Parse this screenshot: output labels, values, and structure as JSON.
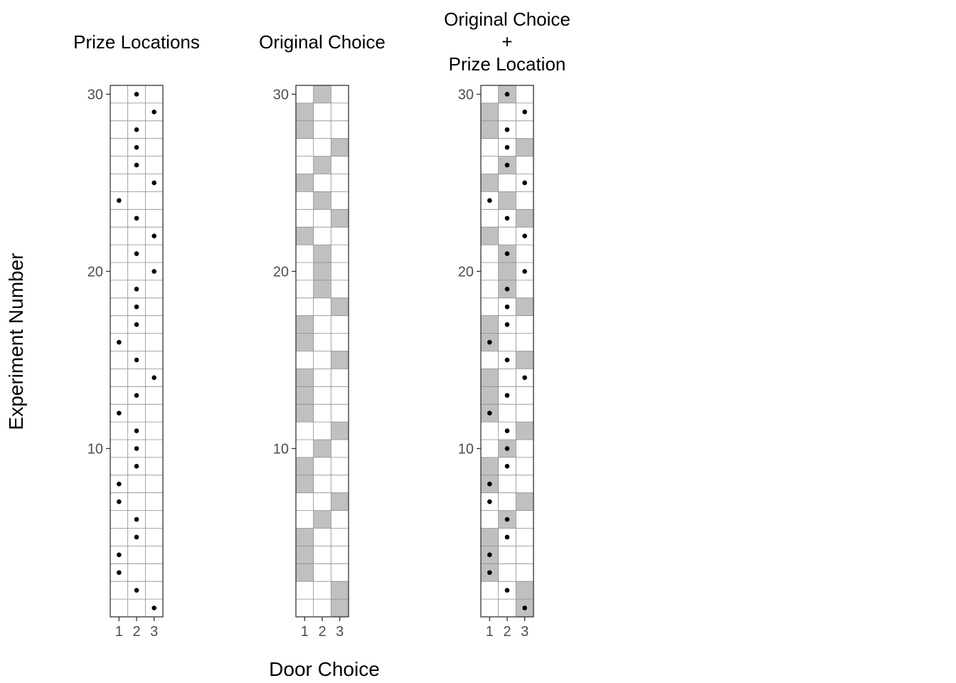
{
  "figure": {
    "shared_xlabel": "Door Choice",
    "shared_ylabel": "Experiment Number"
  },
  "chart_data": [
    {
      "type": "heatmap",
      "title_lines": [
        "Prize Locations"
      ],
      "x_categories": [
        "1",
        "2",
        "3"
      ],
      "y_ticks": [
        10,
        20,
        30
      ],
      "ylim": [
        1,
        30
      ],
      "grid": true,
      "shaded": [],
      "dots": [
        [
          1,
          3
        ],
        [
          2,
          2
        ],
        [
          3,
          1
        ],
        [
          4,
          1
        ],
        [
          5,
          2
        ],
        [
          6,
          2
        ],
        [
          7,
          1
        ],
        [
          8,
          1
        ],
        [
          9,
          2
        ],
        [
          10,
          2
        ],
        [
          11,
          2
        ],
        [
          12,
          1
        ],
        [
          13,
          2
        ],
        [
          14,
          3
        ],
        [
          15,
          2
        ],
        [
          16,
          1
        ],
        [
          17,
          2
        ],
        [
          18,
          2
        ],
        [
          19,
          2
        ],
        [
          20,
          3
        ],
        [
          21,
          2
        ],
        [
          22,
          3
        ],
        [
          23,
          2
        ],
        [
          24,
          1
        ],
        [
          25,
          3
        ],
        [
          26,
          2
        ],
        [
          27,
          2
        ],
        [
          28,
          2
        ],
        [
          29,
          3
        ],
        [
          30,
          2
        ]
      ]
    },
    {
      "type": "heatmap",
      "title_lines": [
        "Original Choice"
      ],
      "x_categories": [
        "1",
        "2",
        "3"
      ],
      "y_ticks": [
        10,
        20,
        30
      ],
      "ylim": [
        1,
        30
      ],
      "grid": true,
      "shaded": [
        [
          1,
          3
        ],
        [
          2,
          3
        ],
        [
          3,
          1
        ],
        [
          4,
          1
        ],
        [
          5,
          1
        ],
        [
          6,
          2
        ],
        [
          7,
          3
        ],
        [
          8,
          1
        ],
        [
          9,
          1
        ],
        [
          10,
          2
        ],
        [
          11,
          3
        ],
        [
          12,
          1
        ],
        [
          13,
          1
        ],
        [
          14,
          1
        ],
        [
          15,
          3
        ],
        [
          16,
          1
        ],
        [
          17,
          1
        ],
        [
          18,
          3
        ],
        [
          19,
          2
        ],
        [
          20,
          2
        ],
        [
          21,
          2
        ],
        [
          22,
          1
        ],
        [
          23,
          3
        ],
        [
          24,
          2
        ],
        [
          25,
          1
        ],
        [
          26,
          2
        ],
        [
          27,
          3
        ],
        [
          28,
          1
        ],
        [
          29,
          1
        ],
        [
          30,
          2
        ]
      ],
      "dots": []
    },
    {
      "type": "heatmap",
      "title_lines": [
        "Original Choice",
        "+",
        "Prize Location"
      ],
      "x_categories": [
        "1",
        "2",
        "3"
      ],
      "y_ticks": [
        10,
        20,
        30
      ],
      "ylim": [
        1,
        30
      ],
      "grid": true,
      "shaded": [
        [
          1,
          3
        ],
        [
          2,
          3
        ],
        [
          3,
          1
        ],
        [
          4,
          1
        ],
        [
          5,
          1
        ],
        [
          6,
          2
        ],
        [
          7,
          3
        ],
        [
          8,
          1
        ],
        [
          9,
          1
        ],
        [
          10,
          2
        ],
        [
          11,
          3
        ],
        [
          12,
          1
        ],
        [
          13,
          1
        ],
        [
          14,
          1
        ],
        [
          15,
          3
        ],
        [
          16,
          1
        ],
        [
          17,
          1
        ],
        [
          18,
          3
        ],
        [
          19,
          2
        ],
        [
          20,
          2
        ],
        [
          21,
          2
        ],
        [
          22,
          1
        ],
        [
          23,
          3
        ],
        [
          24,
          2
        ],
        [
          25,
          1
        ],
        [
          26,
          2
        ],
        [
          27,
          3
        ],
        [
          28,
          1
        ],
        [
          29,
          1
        ],
        [
          30,
          2
        ]
      ],
      "dots": [
        [
          1,
          3
        ],
        [
          2,
          2
        ],
        [
          3,
          1
        ],
        [
          4,
          1
        ],
        [
          5,
          2
        ],
        [
          6,
          2
        ],
        [
          7,
          1
        ],
        [
          8,
          1
        ],
        [
          9,
          2
        ],
        [
          10,
          2
        ],
        [
          11,
          2
        ],
        [
          12,
          1
        ],
        [
          13,
          2
        ],
        [
          14,
          3
        ],
        [
          15,
          2
        ],
        [
          16,
          1
        ],
        [
          17,
          2
        ],
        [
          18,
          2
        ],
        [
          19,
          2
        ],
        [
          20,
          3
        ],
        [
          21,
          2
        ],
        [
          22,
          3
        ],
        [
          23,
          2
        ],
        [
          24,
          1
        ],
        [
          25,
          3
        ],
        [
          26,
          2
        ],
        [
          27,
          2
        ],
        [
          28,
          2
        ],
        [
          29,
          3
        ],
        [
          30,
          2
        ]
      ]
    }
  ],
  "colors": {
    "shade": "#c0c0c0",
    "grid": "#8c8c8c",
    "border": "#333333",
    "dot": "#000000",
    "tick": "#333333"
  }
}
